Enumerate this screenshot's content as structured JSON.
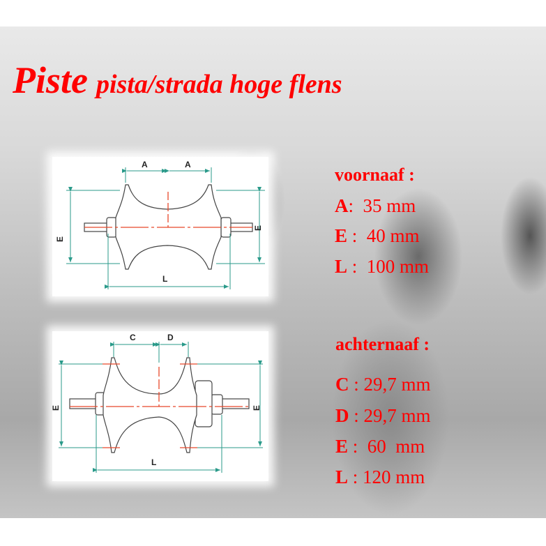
{
  "title": {
    "main": "Piste",
    "sub": "pista/strada hoge flens"
  },
  "front_diagram": {
    "dim_a": "A",
    "dim_e": "E",
    "dim_l": "L"
  },
  "rear_diagram": {
    "dim_c": "C",
    "dim_d": "D",
    "dim_e": "E",
    "dim_l": "L"
  },
  "front_hub": {
    "heading": "voornaaf :",
    "specs": [
      {
        "letter": "A",
        "value": ":  35 mm"
      },
      {
        "letter": "E",
        "value": " :  40 mm"
      },
      {
        "letter": "L",
        "value": " :  100 mm"
      }
    ]
  },
  "rear_hub": {
    "heading": "achternaaf :",
    "specs": [
      {
        "letter": "C",
        "value": " : 29,7 mm"
      },
      {
        "letter": "D",
        "value": " : 29,7 mm"
      },
      {
        "letter": "E",
        "value": " :  60  mm"
      },
      {
        "letter": "L",
        "value": " : 120 mm"
      }
    ]
  },
  "colors": {
    "text": "#ff0000",
    "dimension": "#2a9a8a",
    "centerline": "#e8472a",
    "outline": "#444444"
  }
}
